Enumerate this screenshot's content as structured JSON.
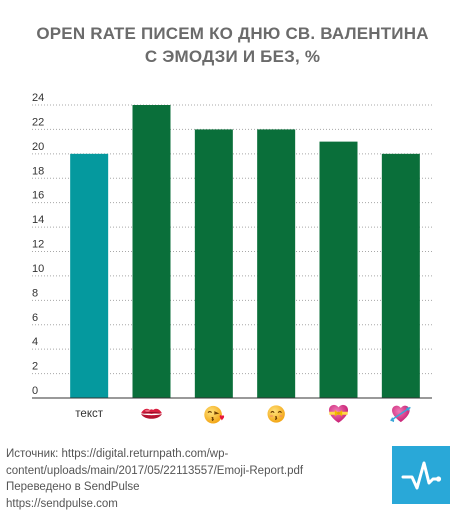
{
  "title_line1": "OPEN RATE ПИСЕМ КО ДНЮ СВ. ВАЛЕНТИНА",
  "title_line2": "С ЭМОДЗИ И БЕЗ, %",
  "chart_data": {
    "type": "bar",
    "title": "OPEN RATE ПИСЕМ КО ДНЮ СВ. ВАЛЕНТИНА С ЭМОДЗИ И БЕЗ, %",
    "categories": [
      "текст",
      "kiss-mark",
      "face-blowing-kiss",
      "kissing-face-smiling-eyes",
      "heart-with-ribbon",
      "heart-with-arrow"
    ],
    "category_labels": [
      "текст",
      "",
      "",
      "",
      "",
      ""
    ],
    "category_icons": [
      null,
      "kiss-mark-icon",
      "face-blowing-kiss-icon",
      "kissing-face-icon",
      "heart-ribbon-icon",
      "heart-arrow-icon"
    ],
    "values": [
      20,
      24,
      22,
      22,
      21,
      20
    ],
    "ylim": [
      0,
      24
    ],
    "yticks": [
      0,
      2,
      4,
      6,
      8,
      10,
      12,
      14,
      16,
      18,
      20,
      22,
      24
    ],
    "grid": true,
    "colors": [
      "#05999e",
      "#0a6f3a",
      "#0a6f3a",
      "#0a6f3a",
      "#0a6f3a",
      "#0a6f3a"
    ],
    "xlabel": "",
    "ylabel": ""
  },
  "footer": {
    "source_line1": "Источник: https://digital.returnpath.com/wp-",
    "source_line2": "content/uploads/main/2017/05/22113557/Emoji-Report.pdf",
    "translated": "Переведено в SendPulse",
    "url": "https://sendpulse.com"
  },
  "colors": {
    "title": "#6b6b6b",
    "grid": "#a8a8a8",
    "logo": "#29a8d8"
  }
}
